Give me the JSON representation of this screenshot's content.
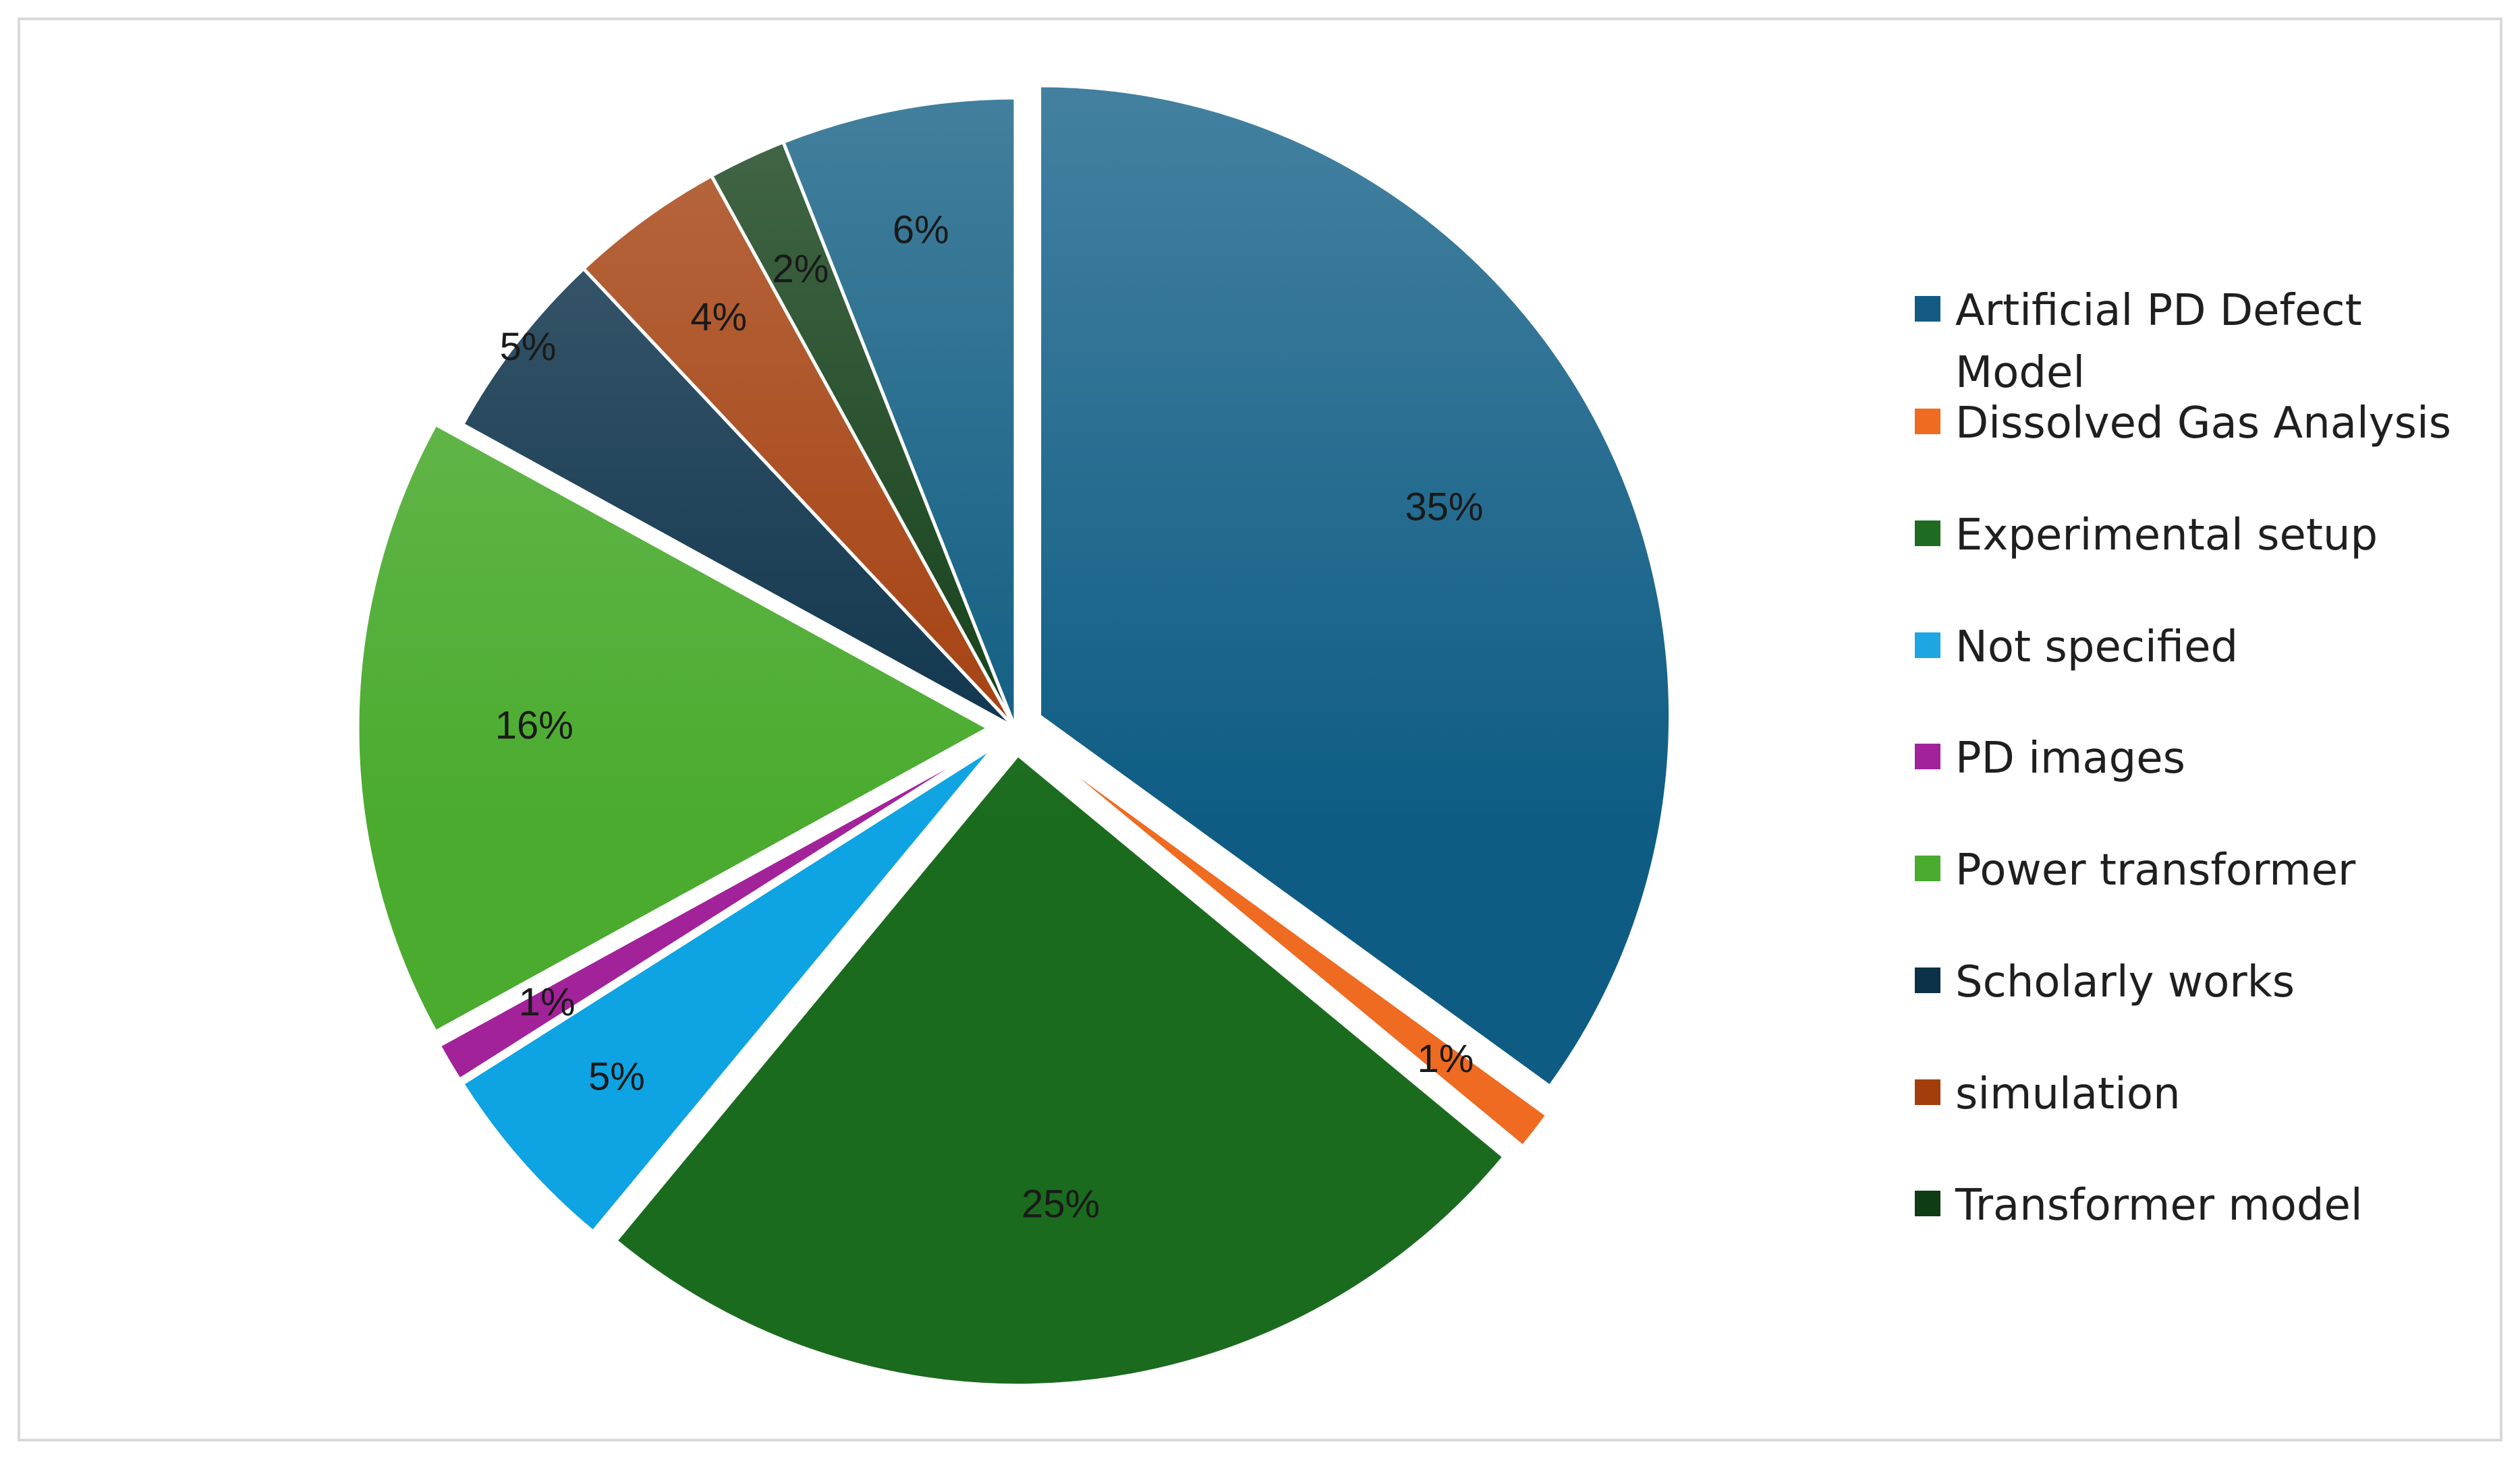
{
  "chart_data": {
    "type": "pie",
    "title": "",
    "legend_position": "right",
    "slices": [
      {
        "label": "Artificial PD Defect Model",
        "value": 35,
        "display": "35%",
        "color": "#0e5c84",
        "exploded": true
      },
      {
        "label": "Dissolved Gas Analysis",
        "value": 1,
        "display": "1%",
        "color": "#ef6b22",
        "exploded": true
      },
      {
        "label": "Experimental setup",
        "value": 25,
        "display": "25%",
        "color": "#1a6b1e",
        "exploded": true
      },
      {
        "label": "Not specified",
        "value": 5,
        "display": "5%",
        "color": "#0ea3e2",
        "exploded": true
      },
      {
        "label": "PD images",
        "value": 1,
        "display": "1%",
        "color": "#a2229a",
        "exploded": true
      },
      {
        "label": "Power transformer",
        "value": 16,
        "display": "16%",
        "color": "#4aab2e",
        "exploded": true
      },
      {
        "label": "Scholarly works",
        "value": 5,
        "display": "5%",
        "color": "#0b3149",
        "exploded": false
      },
      {
        "label": "simulation",
        "value": 4,
        "display": "4%",
        "color": "#a33d0c",
        "exploded": false
      },
      {
        "label": "Transformer model",
        "value": 2,
        "display": "2%",
        "color": "#0f3c15",
        "exploded": false
      },
      {
        "label": "",
        "value": 6,
        "display": "6%",
        "color": "#0d5b80",
        "exploded": false
      }
    ]
  },
  "legend": {
    "items": [
      {
        "label": "Artificial PD Defect Model",
        "color": "#135b84"
      },
      {
        "label": "Dissolved Gas Analysis",
        "color": "#ef6b22"
      },
      {
        "label": "Experimental setup",
        "color": "#1e6b22"
      },
      {
        "label": "Not specified",
        "color": "#1ea6e3"
      },
      {
        "label": "PD images",
        "color": "#a2229a"
      },
      {
        "label": "Power transformer",
        "color": "#4aab2e"
      },
      {
        "label": "Scholarly works",
        "color": "#0b3149"
      },
      {
        "label": "simulation",
        "color": "#a33d0c"
      },
      {
        "label": "Transformer model",
        "color": "#0f3c15"
      }
    ]
  }
}
